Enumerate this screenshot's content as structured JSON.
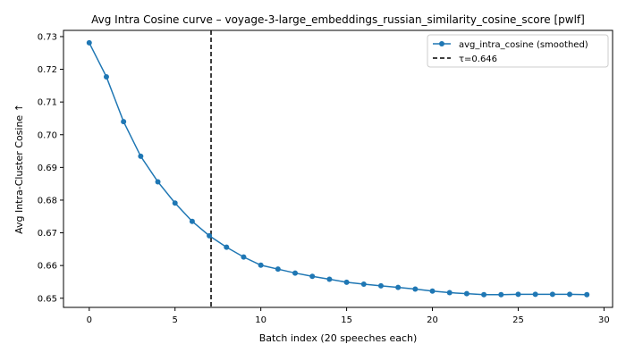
{
  "colors": {
    "series": "#1f77b4",
    "threshold": "#000000",
    "axis": "#000000",
    "legend_border": "#cccccc"
  },
  "chart_data": {
    "type": "line",
    "title": "Avg Intra Cosine curve – voyage-3-large_embeddings_russian_similarity_cosine_score [pwlf]",
    "xlabel": "Batch index (20 speeches each)",
    "ylabel": "Avg Intra-Cluster Cosine ↑",
    "xlim": [
      -1.5,
      30.5
    ],
    "ylim": [
      0.6472,
      0.7319
    ],
    "xticks": [
      0,
      5,
      10,
      15,
      20,
      25,
      30
    ],
    "xtick_labels": [
      "0",
      "5",
      "10",
      "15",
      "20",
      "25",
      "30"
    ],
    "yticks": [
      0.65,
      0.66,
      0.67,
      0.68,
      0.69,
      0.7,
      0.71,
      0.72,
      0.73
    ],
    "ytick_labels": [
      "0.65",
      "0.66",
      "0.67",
      "0.68",
      "0.69",
      "0.70",
      "0.71",
      "0.72",
      "0.73"
    ],
    "grid": false,
    "legend_position": "top-right",
    "series": [
      {
        "name": "avg_intra_cosine (smoothed)",
        "marker": "circle",
        "x": [
          0,
          1,
          2,
          3,
          4,
          5,
          6,
          7,
          8,
          9,
          10,
          11,
          12,
          13,
          14,
          15,
          16,
          17,
          18,
          19,
          20,
          21,
          22,
          23,
          24,
          25,
          26,
          27,
          28,
          29
        ],
        "y": [
          0.7281,
          0.7177,
          0.704,
          0.6934,
          0.6856,
          0.6791,
          0.6735,
          0.6691,
          0.6656,
          0.6626,
          0.6601,
          0.6589,
          0.6577,
          0.6567,
          0.6558,
          0.6549,
          0.6543,
          0.6538,
          0.6533,
          0.6528,
          0.6522,
          0.6517,
          0.6514,
          0.6511,
          0.6511,
          0.6512,
          0.6512,
          0.6512,
          0.6512,
          0.6511
        ]
      }
    ],
    "threshold": {
      "name": "τ=0.646",
      "x": 7.1,
      "style": "dashed"
    }
  }
}
